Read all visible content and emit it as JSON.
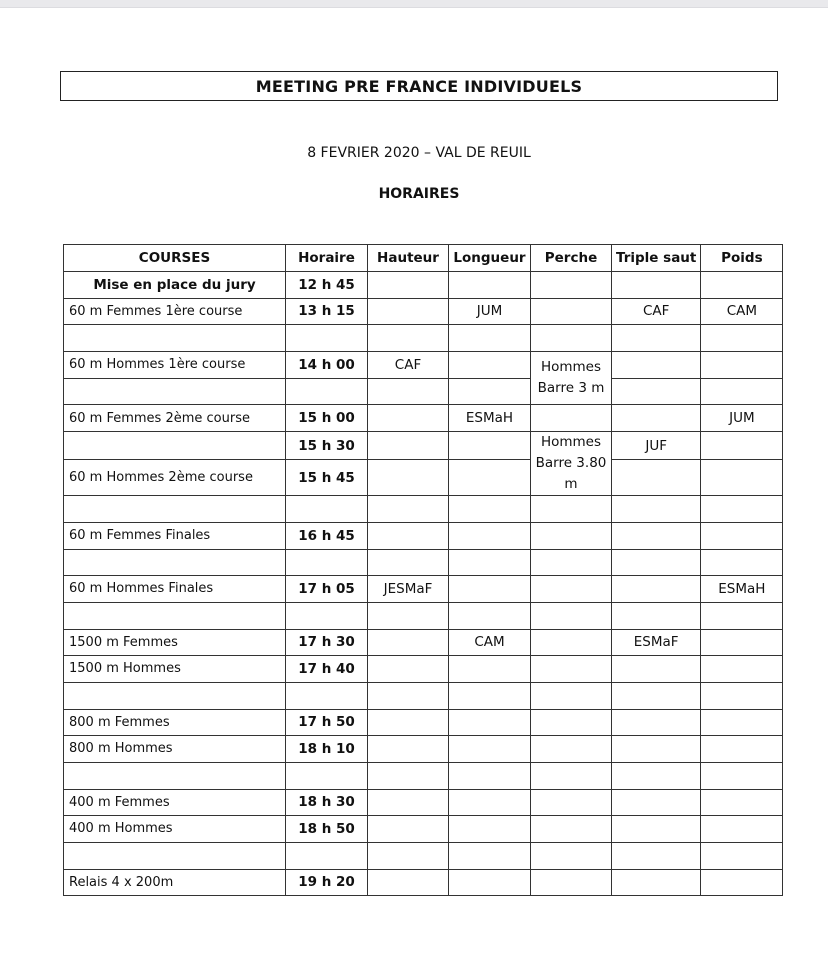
{
  "title": "MEETING PRE FRANCE INDIVIDUELS",
  "date_location": "8 FEVRIER 2020 – VAL DE REUIL",
  "subtitle": "HORAIRES",
  "table": {
    "headers": [
      "COURSES",
      "Horaire",
      "Hauteur",
      "Longueur",
      "Perche",
      "Triple saut",
      "Poids"
    ],
    "rows": [
      {
        "course": "Mise en place du jury",
        "course_bold": true,
        "horaire": "12 h 45",
        "hauteur": "",
        "longueur": "",
        "perche": "",
        "triple": "",
        "poids": ""
      },
      {
        "course": "60 m Femmes 1ère course",
        "horaire": "13 h 15",
        "hauteur": "",
        "longueur": "JUM",
        "perche": "",
        "triple": "CAF",
        "poids": "CAM"
      },
      {
        "course": "",
        "horaire": "",
        "hauteur": "",
        "longueur": "",
        "perche": "",
        "triple": "",
        "poids": ""
      },
      {
        "course": "60 m Hommes 1ère course",
        "horaire": "14 h 00",
        "hauteur": "CAF",
        "longueur": "",
        "perche": "Hommes Barre 3 m",
        "perche_rows": 2,
        "triple": "",
        "poids": ""
      },
      {
        "course": "",
        "horaire": "",
        "hauteur": "",
        "longueur": "",
        "perche": null,
        "triple": "",
        "poids": ""
      },
      {
        "course": "60 m Femmes 2ème course",
        "horaire": "15 h 00",
        "hauteur": "",
        "longueur": "ESMaH",
        "perche": "",
        "triple": "",
        "poids": "JUM"
      },
      {
        "course": "",
        "horaire": "15 h 30",
        "hauteur": "",
        "longueur": "",
        "perche": "Hommes Barre 3.80 m",
        "perche_rows": 2,
        "triple": "JUF",
        "poids": ""
      },
      {
        "course": "60 m Hommes 2ème course",
        "horaire": "15 h 45",
        "hauteur": "",
        "longueur": "",
        "perche": null,
        "triple": "",
        "poids": "",
        "tall": true
      },
      {
        "course": "",
        "horaire": "",
        "hauteur": "",
        "longueur": "",
        "perche": "",
        "triple": "",
        "poids": ""
      },
      {
        "course": "60 m Femmes Finales",
        "horaire": "16 h 45",
        "hauteur": "",
        "longueur": "",
        "perche": "",
        "triple": "",
        "poids": ""
      },
      {
        "course": "",
        "horaire": "",
        "hauteur": "",
        "longueur": "",
        "perche": "",
        "triple": "",
        "poids": ""
      },
      {
        "course": "60 m Hommes Finales",
        "horaire": "17 h 05",
        "hauteur": "JESMaF",
        "longueur": "",
        "perche": "",
        "triple": "",
        "poids": "ESMaH"
      },
      {
        "course": "",
        "horaire": "",
        "hauteur": "",
        "longueur": "",
        "perche": "",
        "triple": "",
        "poids": ""
      },
      {
        "course": "1500 m Femmes",
        "horaire": "17 h 30",
        "hauteur": "",
        "longueur": "CAM",
        "perche": "",
        "triple": "ESMaF",
        "poids": ""
      },
      {
        "course": "1500 m Hommes",
        "horaire": "17 h 40",
        "hauteur": "",
        "longueur": "",
        "perche": "",
        "triple": "",
        "poids": ""
      },
      {
        "course": "",
        "horaire": "",
        "hauteur": "",
        "longueur": "",
        "perche": "",
        "triple": "",
        "poids": ""
      },
      {
        "course": "800 m Femmes",
        "horaire": "17 h 50",
        "hauteur": "",
        "longueur": "",
        "perche": "",
        "triple": "",
        "poids": ""
      },
      {
        "course": "800 m Hommes",
        "horaire": "18 h 10",
        "hauteur": "",
        "longueur": "",
        "perche": "",
        "triple": "",
        "poids": ""
      },
      {
        "course": "",
        "horaire": "",
        "hauteur": "",
        "longueur": "",
        "perche": "",
        "triple": "",
        "poids": ""
      },
      {
        "course": "400 m Femmes",
        "horaire": "18 h 30",
        "hauteur": "",
        "longueur": "",
        "perche": "",
        "triple": "",
        "poids": ""
      },
      {
        "course": "400 m Hommes",
        "horaire": "18 h 50",
        "hauteur": "",
        "longueur": "",
        "perche": "",
        "triple": "",
        "poids": ""
      },
      {
        "course": "",
        "horaire": "",
        "hauteur": "",
        "longueur": "",
        "perche": "",
        "triple": "",
        "poids": ""
      },
      {
        "course": "Relais 4 x 200m",
        "horaire": "19 h 20",
        "hauteur": "",
        "longueur": "",
        "perche": "",
        "triple": "",
        "poids": ""
      }
    ]
  }
}
